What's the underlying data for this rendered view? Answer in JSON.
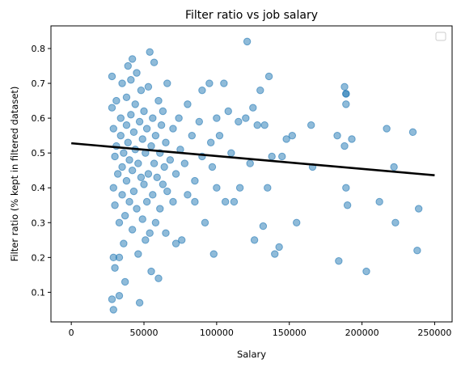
{
  "chart_data": {
    "type": "scatter",
    "title": "Filter ratio vs job salary",
    "xlabel": "Salary",
    "ylabel": "Filter ratio (% kept in filtered dataset)",
    "xlim": [
      -14000,
      262000
    ],
    "ylim": [
      0.015,
      0.865
    ],
    "xticks": [
      0,
      50000,
      100000,
      150000,
      200000,
      250000
    ],
    "yticks": [
      0.1,
      0.2,
      0.3,
      0.4,
      0.5,
      0.6,
      0.7,
      0.8
    ],
    "legend": {
      "placement": "top-right",
      "entries": []
    },
    "grid": false,
    "colors": {
      "points": "#1f77b4",
      "trend": "#000000"
    },
    "trend_line": {
      "x": [
        0,
        250000
      ],
      "y": [
        0.528,
        0.436
      ]
    },
    "series": [
      {
        "points": [
          [
            28000,
            0.72
          ],
          [
            28000,
            0.63
          ],
          [
            29000,
            0.57
          ],
          [
            29000,
            0.4
          ],
          [
            29000,
            0.2
          ],
          [
            30000,
            0.17
          ],
          [
            29000,
            0.05
          ],
          [
            28000,
            0.08
          ],
          [
            30000,
            0.35
          ],
          [
            30000,
            0.49
          ],
          [
            31000,
            0.52
          ],
          [
            31000,
            0.65
          ],
          [
            32000,
            0.44
          ],
          [
            33000,
            0.3
          ],
          [
            33000,
            0.09
          ],
          [
            33000,
            0.2
          ],
          [
            34000,
            0.55
          ],
          [
            34000,
            0.6
          ],
          [
            35000,
            0.7
          ],
          [
            35000,
            0.46
          ],
          [
            35000,
            0.38
          ],
          [
            36000,
            0.5
          ],
          [
            36000,
            0.24
          ],
          [
            37000,
            0.13
          ],
          [
            37000,
            0.32
          ],
          [
            38000,
            0.58
          ],
          [
            38000,
            0.66
          ],
          [
            38000,
            0.42
          ],
          [
            39000,
            0.53
          ],
          [
            39000,
            0.75
          ],
          [
            40000,
            0.48
          ],
          [
            40000,
            0.36
          ],
          [
            41000,
            0.61
          ],
          [
            41000,
            0.71
          ],
          [
            42000,
            0.77
          ],
          [
            42000,
            0.45
          ],
          [
            42000,
            0.28
          ],
          [
            43000,
            0.56
          ],
          [
            43000,
            0.39
          ],
          [
            44000,
            0.51
          ],
          [
            44000,
            0.64
          ],
          [
            45000,
            0.73
          ],
          [
            45000,
            0.34
          ],
          [
            46000,
            0.47
          ],
          [
            46000,
            0.21
          ],
          [
            47000,
            0.59
          ],
          [
            47000,
            0.07
          ],
          [
            48000,
            0.43
          ],
          [
            48000,
            0.68
          ],
          [
            49000,
            0.54
          ],
          [
            49000,
            0.31
          ],
          [
            50000,
            0.62
          ],
          [
            50000,
            0.41
          ],
          [
            51000,
            0.5
          ],
          [
            51000,
            0.25
          ],
          [
            52000,
            0.57
          ],
          [
            52000,
            0.36
          ],
          [
            53000,
            0.69
          ],
          [
            53000,
            0.44
          ],
          [
            54000,
            0.79
          ],
          [
            54000,
            0.27
          ],
          [
            55000,
            0.52
          ],
          [
            55000,
            0.16
          ],
          [
            56000,
            0.6
          ],
          [
            56000,
            0.38
          ],
          [
            57000,
            0.76
          ],
          [
            57000,
            0.47
          ],
          [
            58000,
            0.55
          ],
          [
            58000,
            0.3
          ],
          [
            59000,
            0.43
          ],
          [
            60000,
            0.65
          ],
          [
            60000,
            0.14
          ],
          [
            61000,
            0.5
          ],
          [
            61000,
            0.34
          ],
          [
            62000,
            0.58
          ],
          [
            63000,
            0.41
          ],
          [
            63000,
            0.62
          ],
          [
            64000,
            0.46
          ],
          [
            65000,
            0.53
          ],
          [
            65000,
            0.27
          ],
          [
            66000,
            0.7
          ],
          [
            66000,
            0.39
          ],
          [
            68000,
            0.48
          ],
          [
            70000,
            0.57
          ],
          [
            70000,
            0.36
          ],
          [
            72000,
            0.44
          ],
          [
            72000,
            0.24
          ],
          [
            74000,
            0.6
          ],
          [
            75000,
            0.51
          ],
          [
            76000,
            0.25
          ],
          [
            78000,
            0.47
          ],
          [
            80000,
            0.64
          ],
          [
            80000,
            0.38
          ],
          [
            83000,
            0.55
          ],
          [
            85000,
            0.42
          ],
          [
            85000,
            0.36
          ],
          [
            88000,
            0.59
          ],
          [
            90000,
            0.49
          ],
          [
            90000,
            0.68
          ],
          [
            92000,
            0.3
          ],
          [
            95000,
            0.7
          ],
          [
            96000,
            0.53
          ],
          [
            97000,
            0.46
          ],
          [
            98000,
            0.21
          ],
          [
            100000,
            0.6
          ],
          [
            100000,
            0.4
          ],
          [
            102000,
            0.55
          ],
          [
            105000,
            0.7
          ],
          [
            106000,
            0.36
          ],
          [
            108000,
            0.62
          ],
          [
            110000,
            0.5
          ],
          [
            112000,
            0.36
          ],
          [
            115000,
            0.59
          ],
          [
            116000,
            0.4
          ],
          [
            120000,
            0.6
          ],
          [
            121000,
            0.82
          ],
          [
            123000,
            0.47
          ],
          [
            125000,
            0.63
          ],
          [
            126000,
            0.25
          ],
          [
            128000,
            0.58
          ],
          [
            130000,
            0.68
          ],
          [
            132000,
            0.29
          ],
          [
            133000,
            0.58
          ],
          [
            135000,
            0.4
          ],
          [
            136000,
            0.72
          ],
          [
            138000,
            0.49
          ],
          [
            140000,
            0.21
          ],
          [
            143000,
            0.23
          ],
          [
            145000,
            0.49
          ],
          [
            148000,
            0.54
          ],
          [
            152000,
            0.55
          ],
          [
            155000,
            0.3
          ],
          [
            165000,
            0.58
          ],
          [
            166000,
            0.46
          ],
          [
            183000,
            0.55
          ],
          [
            184000,
            0.19
          ],
          [
            188000,
            0.69
          ],
          [
            188000,
            0.52
          ],
          [
            189000,
            0.4
          ],
          [
            190000,
            0.35
          ],
          [
            193000,
            0.54
          ],
          [
            203000,
            0.16
          ],
          [
            212000,
            0.36
          ],
          [
            217000,
            0.57
          ],
          [
            222000,
            0.46
          ],
          [
            223000,
            0.3
          ],
          [
            235000,
            0.56
          ],
          [
            239000,
            0.34
          ],
          [
            238000,
            0.22
          ],
          [
            189000,
            0.67
          ],
          [
            189000,
            0.67
          ],
          [
            189000,
            0.64
          ]
        ]
      }
    ]
  }
}
